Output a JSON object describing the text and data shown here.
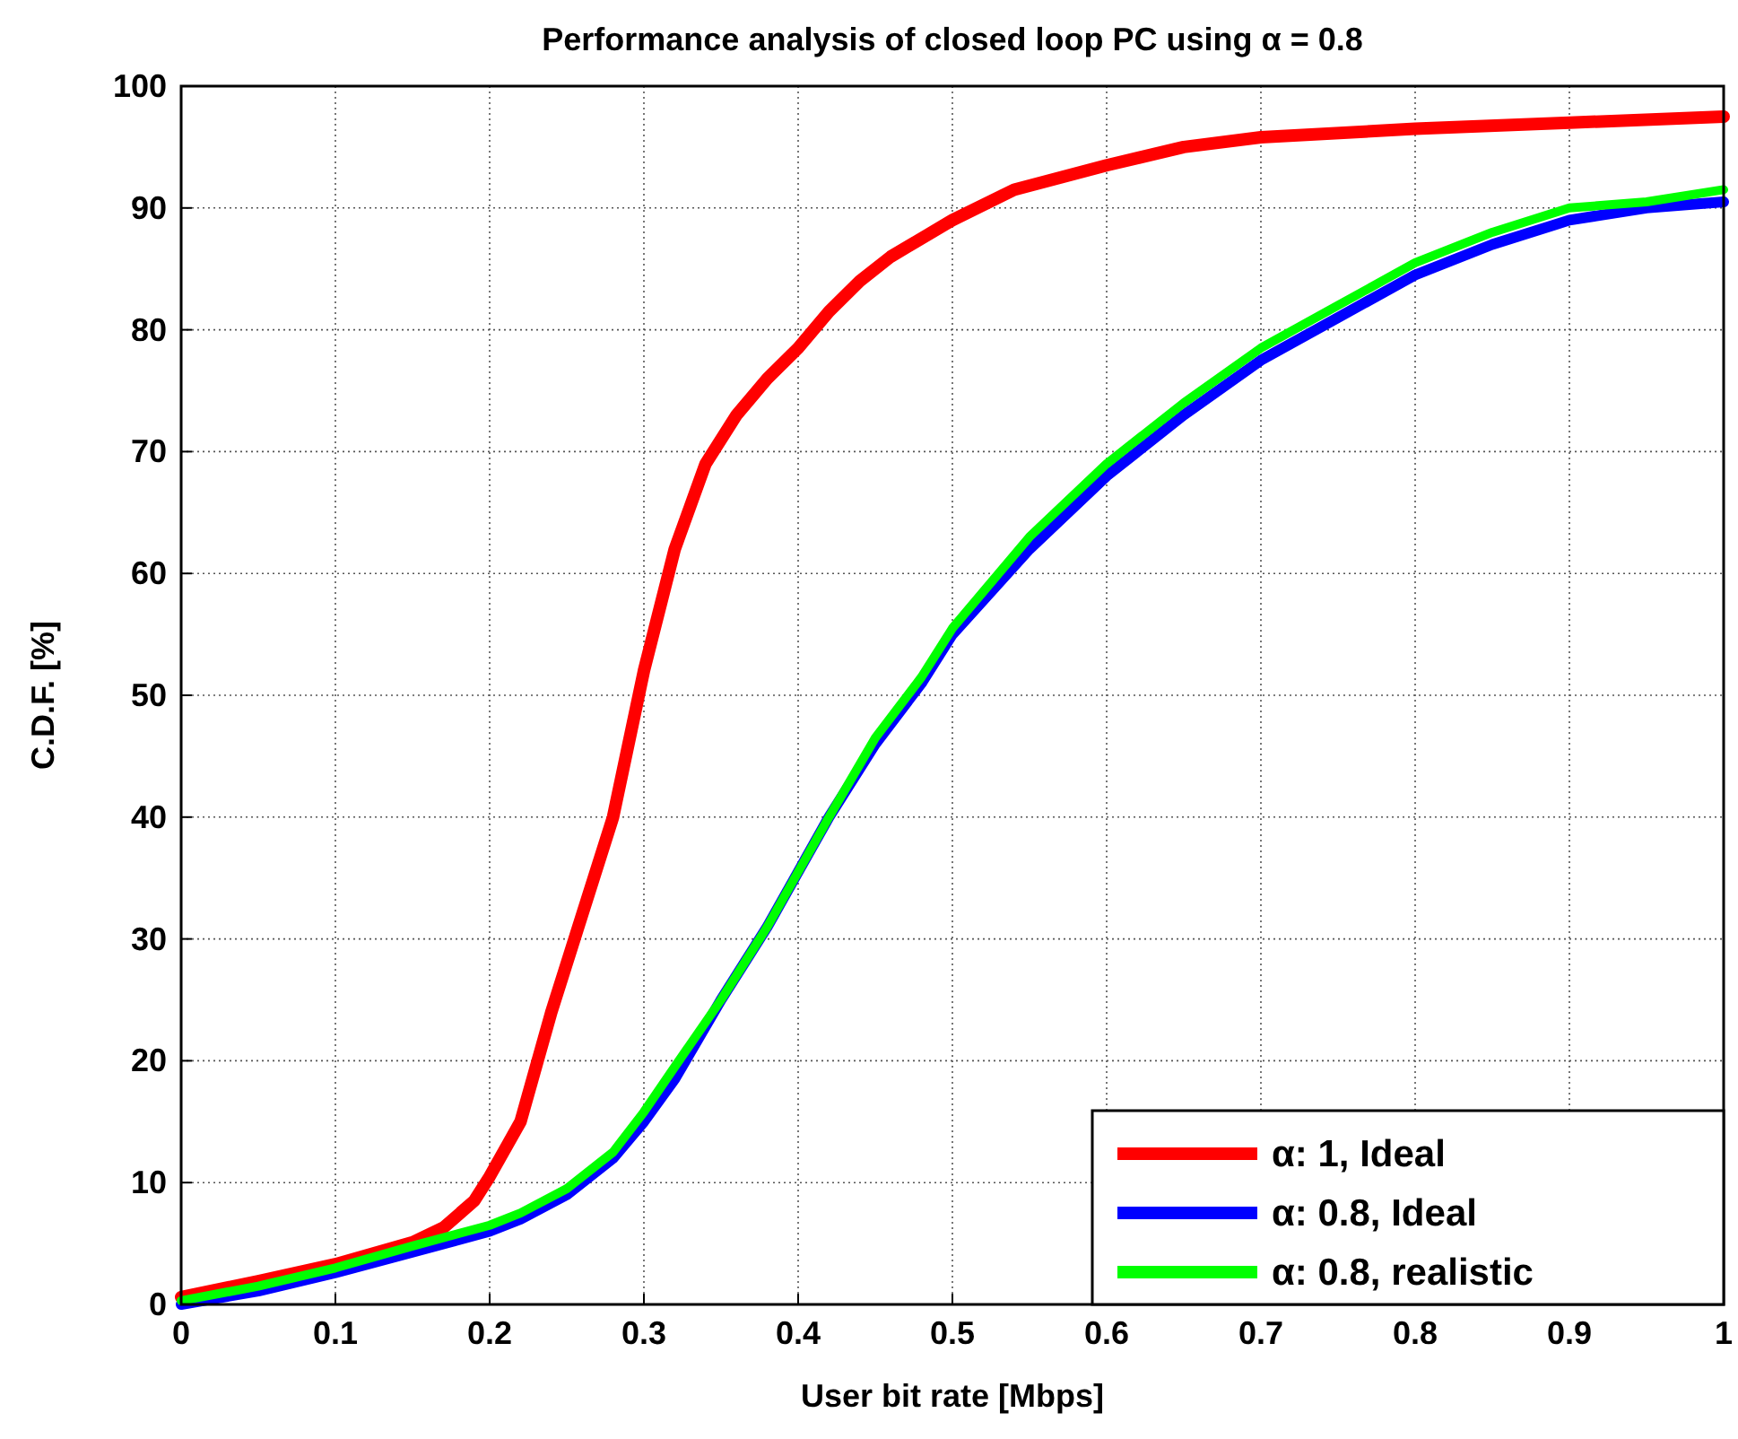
{
  "chart_data": {
    "type": "line",
    "title": "Performance analysis of closed loop PC using α = 0.8",
    "xlabel": "User bit rate [Mbps]",
    "ylabel": "C.D.F.  [%]",
    "xlim": [
      0,
      1
    ],
    "xticks": [
      0,
      0.1,
      0.2,
      0.3,
      0.4,
      0.5,
      0.6,
      0.7,
      0.8,
      0.9,
      1
    ],
    "ylim": [
      0,
      100
    ],
    "yticks": [
      0,
      10,
      20,
      30,
      40,
      50,
      60,
      70,
      80,
      90,
      100
    ],
    "grid": true,
    "legend": "bottom right",
    "line_style": "solid",
    "marker": "none",
    "series": [
      {
        "name": "α: 1, Ideal",
        "color": "#ff0000",
        "x": [
          0,
          0.05,
          0.1,
          0.15,
          0.17,
          0.19,
          0.2,
          0.22,
          0.24,
          0.26,
          0.28,
          0.29,
          0.3,
          0.32,
          0.34,
          0.36,
          0.38,
          0.4,
          0.42,
          0.44,
          0.46,
          0.5,
          0.54,
          0.6,
          0.65,
          0.7,
          0.8,
          0.9,
          1
        ],
        "values": [
          0.6,
          1.9,
          3.3,
          5.1,
          6.3,
          8.5,
          10.5,
          15,
          24,
          32,
          40,
          46,
          52,
          62,
          69,
          73,
          76,
          78.5,
          81.5,
          84,
          86,
          89,
          91.5,
          93.5,
          95,
          95.8,
          96.5,
          97,
          97.5
        ]
      },
      {
        "name": "α: 0.8, Ideal",
        "color": "#0000ff",
        "x": [
          0,
          0.05,
          0.1,
          0.15,
          0.2,
          0.22,
          0.25,
          0.28,
          0.3,
          0.32,
          0.35,
          0.38,
          0.4,
          0.42,
          0.45,
          0.48,
          0.5,
          0.55,
          0.6,
          0.65,
          0.7,
          0.75,
          0.8,
          0.85,
          0.9,
          0.95,
          1
        ],
        "values": [
          0,
          1.1,
          2.6,
          4.3,
          6,
          7,
          9,
          12,
          15,
          18.5,
          25,
          31,
          35.5,
          40,
          46,
          51,
          55,
          62,
          68,
          73,
          77.5,
          81,
          84.5,
          87,
          89,
          90,
          90.5
        ]
      },
      {
        "name": "α: 0.8, realistic",
        "color": "#00ff00",
        "x": [
          0,
          0.05,
          0.1,
          0.15,
          0.2,
          0.22,
          0.25,
          0.28,
          0.3,
          0.32,
          0.35,
          0.38,
          0.4,
          0.42,
          0.45,
          0.48,
          0.5,
          0.55,
          0.6,
          0.65,
          0.7,
          0.75,
          0.8,
          0.85,
          0.9,
          0.95,
          1
        ],
        "values": [
          0.3,
          1.5,
          3,
          4.8,
          6.5,
          7.5,
          9.5,
          12.5,
          15.8,
          19.5,
          25,
          31,
          35.5,
          40,
          46.5,
          51.5,
          55.5,
          63,
          69,
          74,
          78.5,
          82,
          85.5,
          88,
          90,
          90.5,
          91.5
        ]
      }
    ]
  }
}
